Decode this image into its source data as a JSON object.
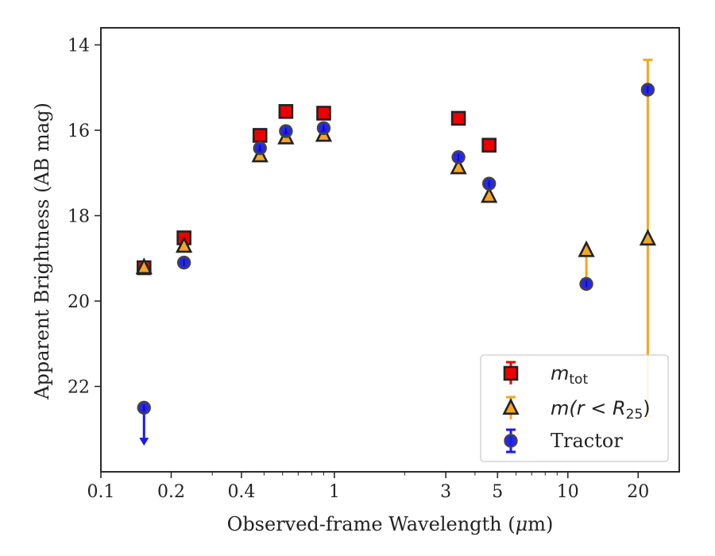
{
  "chart_data": {
    "type": "scatter",
    "xlabel_main": "Observed-frame Wavelength (",
    "xlabel_mu": "μ",
    "xlabel_tail": "m)",
    "ylabel": "Apparent Brightness (AB mag)",
    "x_scale": "log",
    "xlim": [
      0.1,
      30
    ],
    "ylim": [
      24.0,
      13.6
    ],
    "y_inverted": true,
    "x_ticks": [
      0.1,
      0.2,
      0.4,
      1,
      3,
      5,
      10,
      20
    ],
    "x_tick_labels": [
      "0.1",
      "0.2",
      "0.4",
      "1",
      "3",
      "5",
      "10",
      "20"
    ],
    "y_ticks": [
      14,
      16,
      18,
      20,
      22
    ],
    "y_tick_labels": [
      "14",
      "16",
      "18",
      "20",
      "22"
    ],
    "grid": false,
    "legend_position": "lower-right",
    "colors": {
      "m_tot": "#ee0000",
      "m_r25": "#f5a623",
      "tractor": "#1a1aee",
      "edge": "#222222",
      "tractor_edge": "#444444"
    },
    "series": [
      {
        "key": "m_tot",
        "marker": "square",
        "legend_base": "m",
        "legend_sub": "tot",
        "points": [
          {
            "x": 0.153,
            "y": 19.22
          },
          {
            "x": 0.227,
            "y": 18.52
          },
          {
            "x": 0.48,
            "y": 16.12
          },
          {
            "x": 0.62,
            "y": 15.56
          },
          {
            "x": 0.9,
            "y": 15.6
          },
          {
            "x": 3.4,
            "y": 15.72
          },
          {
            "x": 4.6,
            "y": 16.35
          }
        ]
      },
      {
        "key": "m_r25",
        "marker": "triangle",
        "legend_base": "m(r < R",
        "legend_sub": "25",
        "legend_close": ")",
        "points": [
          {
            "x": 0.153,
            "y": 19.22
          },
          {
            "x": 0.227,
            "y": 18.72
          },
          {
            "x": 0.48,
            "y": 16.6
          },
          {
            "x": 0.62,
            "y": 16.18
          },
          {
            "x": 0.9,
            "y": 16.12
          },
          {
            "x": 3.4,
            "y": 16.88
          },
          {
            "x": 4.6,
            "y": 17.55
          },
          {
            "x": 12.0,
            "y": 18.82,
            "err_low": 19.5,
            "err_high": 18.82
          },
          {
            "x": 22.0,
            "y": 18.55,
            "err_low": 22.7,
            "err_high": 14.35
          }
        ]
      },
      {
        "key": "tractor",
        "marker": "circle",
        "legend_label": "Tractor",
        "points": [
          {
            "x": 0.153,
            "y": 22.5,
            "upper_limit_to": 23.35
          },
          {
            "x": 0.227,
            "y": 19.1
          },
          {
            "x": 0.48,
            "y": 16.42
          },
          {
            "x": 0.62,
            "y": 16.02
          },
          {
            "x": 0.9,
            "y": 15.95
          },
          {
            "x": 3.4,
            "y": 16.63
          },
          {
            "x": 4.6,
            "y": 17.25
          },
          {
            "x": 12.0,
            "y": 19.6
          },
          {
            "x": 22.0,
            "y": 15.05
          }
        ]
      }
    ]
  }
}
